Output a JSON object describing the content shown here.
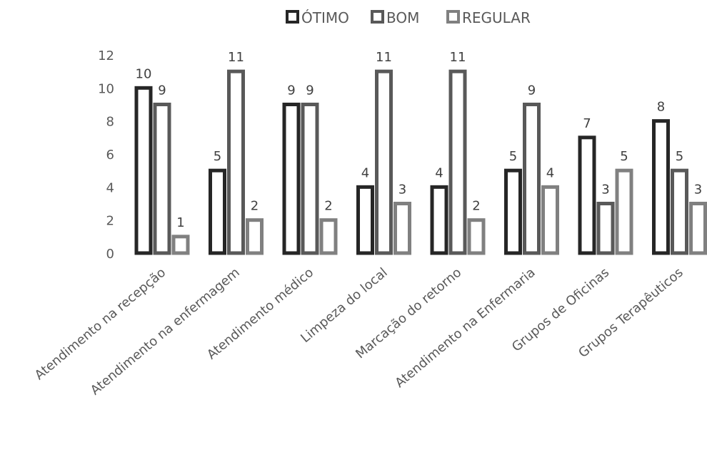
{
  "chart_data": {
    "type": "bar",
    "title": "",
    "xlabel": "",
    "ylabel": "",
    "ylim": [
      0,
      12
    ],
    "yticks": [
      0,
      2,
      4,
      6,
      8,
      10,
      12
    ],
    "grid": false,
    "legend_position": "top",
    "categories": [
      "Atendimento na recepção",
      "Atendimento na enfermagem",
      "Atendimento médico",
      "Limpeza do local",
      "Marcação do retorno",
      "Atendimento na Enfermaria",
      "Grupos de Oficinas",
      "Grupos Terapêuticos"
    ],
    "series": [
      {
        "name": "ÓTIMO",
        "color": "#262626",
        "values": [
          10,
          5,
          9,
          4,
          4,
          5,
          7,
          8
        ]
      },
      {
        "name": "BOM",
        "color": "#595959",
        "values": [
          9,
          11,
          9,
          11,
          11,
          9,
          3,
          5
        ]
      },
      {
        "name": "REGULAR",
        "color": "#808080",
        "values": [
          1,
          2,
          2,
          3,
          2,
          4,
          5,
          3
        ]
      }
    ]
  }
}
